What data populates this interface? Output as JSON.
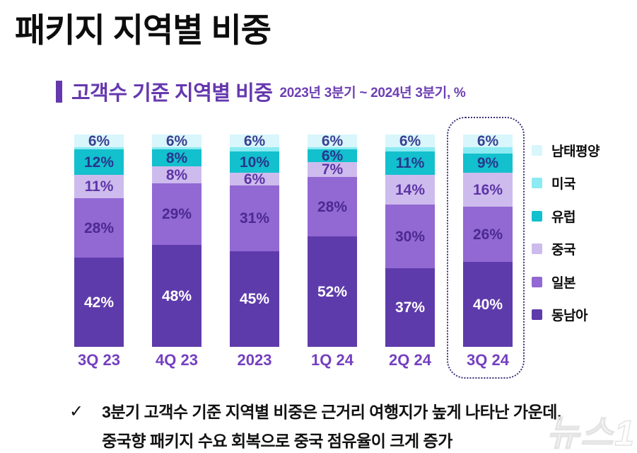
{
  "page_title": "패키지 지역별 비중",
  "section": {
    "heading": "고객수 기준 지역별 비중",
    "period_note": "2023년 3분기 ~ 2024년 3분기, %"
  },
  "chart_data": {
    "type": "bar",
    "stacked": true,
    "unit": "%",
    "ylim": [
      0,
      100
    ],
    "grid": false,
    "legend_position": "right",
    "categories": [
      "3Q 23",
      "4Q 23",
      "2023",
      "1Q 24",
      "2Q 24",
      "3Q 24"
    ],
    "highlighted_category": "3Q 24",
    "series": [
      {
        "id": "southeast-asia",
        "name": "동남아",
        "color": "#5e3bab",
        "label_color": "#ffffff",
        "show_labels": true,
        "values": [
          42,
          48,
          45,
          52,
          37,
          40
        ]
      },
      {
        "id": "japan",
        "name": "일본",
        "color": "#9268d3",
        "label_color": "#4b2a8e",
        "show_labels": true,
        "values": [
          28,
          29,
          31,
          28,
          30,
          26
        ]
      },
      {
        "id": "china",
        "name": "중국",
        "color": "#cdbbed",
        "label_color": "#5d35a6",
        "show_labels": true,
        "values": [
          11,
          8,
          6,
          7,
          14,
          16
        ]
      },
      {
        "id": "europe",
        "name": "유럽",
        "color": "#13c0cd",
        "label_color": "#27368e",
        "show_labels": true,
        "values": [
          12,
          8,
          10,
          6,
          11,
          9
        ]
      },
      {
        "id": "usa",
        "name": "미국",
        "color": "#8ceaf2",
        "label_color": "#27368e",
        "show_labels": false,
        "values": [
          1,
          1,
          2,
          1,
          2,
          3
        ]
      },
      {
        "id": "south-pacific",
        "name": "남태평양",
        "color": "#d8f6fb",
        "label_color": "#3c3f92",
        "show_labels": true,
        "values": [
          6,
          6,
          6,
          6,
          6,
          6
        ]
      }
    ],
    "legend": [
      "남태평양",
      "미국",
      "유럽",
      "중국",
      "일본",
      "동남아"
    ]
  },
  "footnote": {
    "check": "✓",
    "line1": "3분기 고객수 기준 지역별 비중은 근거리 여행지가 높게 나타난 가운데,",
    "line2": "중국향 패키지 수요 회복으로 중국 점유율이 크게 증가"
  },
  "watermark": "뉴스1",
  "colors": {
    "accent_purple": "#6538ae",
    "axis_label_purple": "#7440c0",
    "highlight_border": "#3a3076",
    "title_black": "#0d0d0d"
  }
}
